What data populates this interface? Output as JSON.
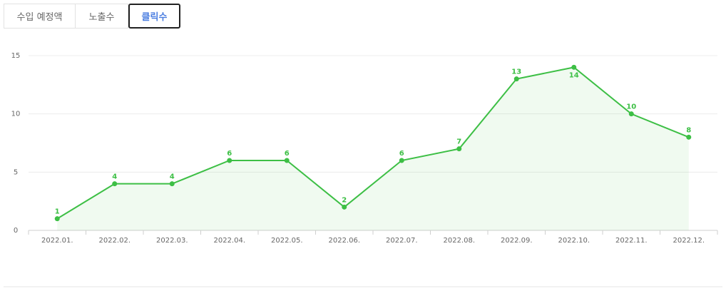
{
  "tabs": [
    "수입 예정액",
    "노출수",
    "클릭수"
  ],
  "chart_data": {
    "type": "line",
    "categories": [
      "2022.01.",
      "2022.02.",
      "2022.03.",
      "2022.04.",
      "2022.05.",
      "2022.06.",
      "2022.07.",
      "2022.08.",
      "2022.09.",
      "2022.10.",
      "2022.11.",
      "2022.12."
    ],
    "values": [
      1,
      4,
      4,
      6,
      6,
      2,
      6,
      7,
      13,
      14,
      10,
      8
    ],
    "color": "#3dbf45",
    "ylim": [
      0,
      15
    ],
    "yticks": [
      0,
      5,
      10,
      15
    ],
    "grid": true
  }
}
